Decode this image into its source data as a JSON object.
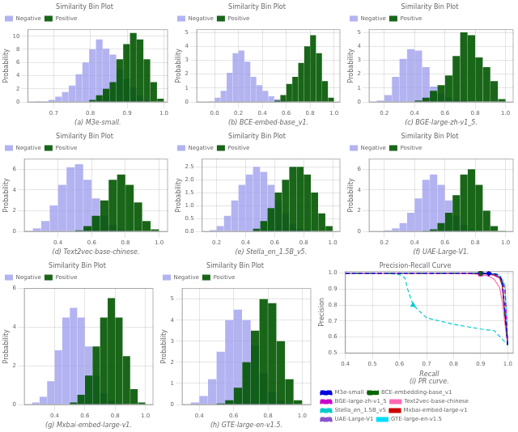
{
  "chart_data": [
    {
      "type": "histogram",
      "title": "Similarity Bin Plot",
      "x_label": "(a) M3e-small.",
      "y_label": "Probability",
      "bins": [
        0.63,
        0.6485,
        0.667,
        0.6855,
        0.704,
        0.7225,
        0.741,
        0.7595,
        0.778,
        0.7965,
        0.815,
        0.8335,
        0.852,
        0.8705,
        0.889,
        0.9075,
        0.926,
        0.9445,
        0.963,
        0.9815,
        1.0
      ],
      "series": [
        {
          "name": "Negative",
          "color": "#9999ee",
          "values": [
            0.0,
            0.02,
            0.1,
            0.3,
            0.8,
            1.5,
            2.5,
            4.2,
            6.0,
            8.0,
            9.5,
            8.1,
            7.2,
            5.0,
            3.5,
            2.2,
            1.0,
            0.3,
            0.05,
            0.0
          ]
        },
        {
          "name": "Positive",
          "color": "#005500",
          "values": [
            0.0,
            0.0,
            0.0,
            0.0,
            0.0,
            0.0,
            0.0,
            0.0,
            0.0,
            0.3,
            1.0,
            2.0,
            3.0,
            6.5,
            8.8,
            10.5,
            9.5,
            6.5,
            3.0,
            0.5
          ]
        }
      ],
      "xlim": [
        0.63,
        1.01
      ],
      "ylim": [
        0,
        11
      ],
      "xticks": [
        0.7,
        0.8,
        0.9,
        {
          "value": 1.0,
          "label": "1.0"
        }
      ],
      "yticks": [
        0,
        2,
        4,
        6,
        8,
        10
      ],
      "grid": true,
      "legend": "upper left"
    },
    {
      "type": "histogram",
      "title": "Similarity Bin Plot",
      "x_label": "(b) BCE-embed-base_v1.",
      "y_label": "Probability",
      "bins": [
        -0.1,
        -0.05,
        0.0,
        0.05,
        0.1,
        0.15,
        0.2,
        0.25,
        0.3,
        0.35,
        0.4,
        0.45,
        0.5,
        0.55,
        0.6,
        0.65,
        0.7,
        0.75,
        0.8,
        0.85,
        0.9,
        0.95,
        1.0
      ],
      "series": [
        {
          "name": "Negative",
          "color": "#9999ee",
          "values": [
            0.0,
            0.05,
            0.3,
            0.8,
            2.1,
            3.5,
            3.7,
            2.9,
            1.8,
            1.2,
            0.8,
            0.4,
            0.2,
            0.1,
            0.05,
            0.0,
            0.0,
            0.0,
            0.0,
            0.0,
            0.0,
            0.0
          ]
        },
        {
          "name": "Positive",
          "color": "#005500",
          "values": [
            0.0,
            0.0,
            0.0,
            0.0,
            0.0,
            0.0,
            0.0,
            0.0,
            0.0,
            0.0,
            0.0,
            0.0,
            0.1,
            0.5,
            1.3,
            1.8,
            2.8,
            4.0,
            4.8,
            3.5,
            1.5,
            0.3
          ]
        }
      ],
      "xlim": [
        -0.15,
        1.05
      ],
      "ylim": [
        0,
        5.2
      ],
      "xticks": [
        {
          "value": 0.0,
          "label": "0.0"
        },
        0.2,
        0.4,
        0.6,
        0.8,
        {
          "value": 1.0,
          "label": "1.0"
        }
      ],
      "yticks": [
        0,
        1,
        2,
        3,
        4,
        5
      ],
      "grid": true,
      "legend": "upper left"
    },
    {
      "type": "histogram",
      "title": "Similarity Bin Plot",
      "x_label": "(c) BGE-large-zh-v1_5.",
      "y_label": "Probability",
      "bins": [
        0.1,
        0.15,
        0.2,
        0.25,
        0.3,
        0.35,
        0.4,
        0.45,
        0.5,
        0.55,
        0.6,
        0.65,
        0.7,
        0.75,
        0.8,
        0.85,
        0.9,
        0.95,
        1.0
      ],
      "series": [
        {
          "name": "Negative",
          "color": "#9999ee",
          "values": [
            0.0,
            0.1,
            0.5,
            1.8,
            3.1,
            3.8,
            3.7,
            2.5,
            1.1,
            0.6,
            0.3,
            0.15,
            0.1,
            0.0,
            0.0,
            0.0,
            0.0,
            0.0
          ]
        },
        {
          "name": "Positive",
          "color": "#005500",
          "values": [
            0.0,
            0.0,
            0.0,
            0.0,
            0.0,
            0.0,
            0.1,
            0.3,
            0.8,
            1.2,
            1.9,
            3.3,
            5.0,
            4.8,
            3.2,
            2.5,
            1.5,
            0.2
          ]
        }
      ],
      "xlim": [
        0.1,
        1.05
      ],
      "ylim": [
        0,
        5.2
      ],
      "xticks": [
        0.2,
        0.4,
        0.6,
        0.8,
        {
          "value": 1.0,
          "label": "1.0"
        }
      ],
      "yticks": [
        0,
        1,
        2,
        3,
        4,
        5
      ],
      "grid": true,
      "legend": "upper left"
    },
    {
      "type": "histogram",
      "title": "Similarity Bin Plot",
      "x_label": "(d) Text2vec-base-chinese.",
      "y_label": "Probability",
      "bins": [
        0.2,
        0.25,
        0.3,
        0.35,
        0.4,
        0.45,
        0.5,
        0.55,
        0.6,
        0.65,
        0.7,
        0.75,
        0.8,
        0.85,
        0.9,
        0.95,
        1.0
      ],
      "series": [
        {
          "name": "Negative",
          "color": "#9999ee",
          "values": [
            0.05,
            0.3,
            1.0,
            2.5,
            4.5,
            6.2,
            6.5,
            5.0,
            3.2,
            1.5,
            0.6,
            0.2,
            0.05,
            0.0,
            0.0,
            0.0
          ]
        },
        {
          "name": "Positive",
          "color": "#005500",
          "values": [
            0.0,
            0.0,
            0.0,
            0.0,
            0.0,
            0.0,
            0.1,
            0.5,
            1.5,
            3.0,
            5.0,
            5.5,
            4.5,
            2.8,
            1.0,
            0.2
          ]
        }
      ],
      "xlim": [
        0.2,
        1.05
      ],
      "ylim": [
        0,
        7
      ],
      "xticks": [
        0.4,
        0.6,
        0.8,
        {
          "value": 1.0,
          "label": "1.0"
        }
      ],
      "yticks": [
        0,
        2,
        4,
        6
      ],
      "grid": true,
      "legend": "upper left"
    },
    {
      "type": "histogram",
      "title": "Similarity Bin Plot",
      "x_label": "(e) Stella_en_1.5B_v5.",
      "y_label": "Probability",
      "bins": [
        0.1,
        0.15,
        0.2,
        0.25,
        0.3,
        0.35,
        0.4,
        0.45,
        0.5,
        0.55,
        0.6,
        0.65,
        0.7,
        0.75,
        0.8,
        0.85,
        0.9,
        0.95,
        1.0
      ],
      "series": [
        {
          "name": "Negative",
          "color": "#9999ee",
          "values": [
            0.0,
            0.05,
            0.2,
            0.6,
            1.2,
            1.8,
            2.2,
            2.5,
            2.3,
            1.8,
            1.2,
            0.7,
            0.3,
            0.1,
            0.05,
            0.0,
            0.0,
            0.0
          ]
        },
        {
          "name": "Positive",
          "color": "#005500",
          "values": [
            0.0,
            0.0,
            0.0,
            0.0,
            0.0,
            0.0,
            0.0,
            0.1,
            0.4,
            0.9,
            1.5,
            2.0,
            2.5,
            2.5,
            2.2,
            1.5,
            0.7,
            0.2
          ]
        }
      ],
      "xlim": [
        0.1,
        1.05
      ],
      "ylim": [
        0,
        2.8
      ],
      "xticks": [
        0.2,
        0.4,
        0.6,
        0.8,
        {
          "value": 1.0,
          "label": "1.0"
        }
      ],
      "yticks": [
        {
          "value": 0.0,
          "label": "0.0"
        },
        0.5,
        {
          "value": 1.0,
          "label": "1.0"
        },
        1.5,
        {
          "value": 2.0,
          "label": "2.0"
        },
        2.5
      ],
      "grid": true,
      "legend": "upper left"
    },
    {
      "type": "histogram",
      "title": "Similarity Bin Plot",
      "x_label": "(f) UAE-Large-V1.",
      "y_label": "Probability",
      "bins": [
        0.1,
        0.15,
        0.2,
        0.25,
        0.3,
        0.35,
        0.4,
        0.45,
        0.5,
        0.55,
        0.6,
        0.65,
        0.7,
        0.75,
        0.8,
        0.85,
        0.9,
        0.95,
        1.0
      ],
      "series": [
        {
          "name": "Negative",
          "color": "#9999ee",
          "values": [
            0.0,
            0.0,
            0.1,
            0.3,
            0.8,
            1.8,
            3.2,
            5.0,
            5.5,
            4.5,
            3.0,
            1.5,
            0.6,
            0.2,
            0.05,
            0.0,
            0.0,
            0.0
          ]
        },
        {
          "name": "Positive",
          "color": "#005500",
          "values": [
            0.0,
            0.0,
            0.0,
            0.0,
            0.0,
            0.0,
            0.0,
            0.05,
            0.2,
            0.8,
            1.8,
            3.5,
            5.5,
            6.0,
            4.5,
            2.0,
            0.5,
            0.05
          ]
        }
      ],
      "xlim": [
        0.1,
        1.05
      ],
      "ylim": [
        0,
        7
      ],
      "xticks": [
        0.2,
        0.4,
        0.6,
        0.8,
        {
          "value": 1.0,
          "label": "1.0"
        }
      ],
      "yticks": [
        0,
        2,
        4,
        6
      ],
      "grid": true,
      "legend": "upper left"
    },
    {
      "type": "histogram",
      "title": "Similarity Bin Plot",
      "x_label": "(g) Mxbai-embed-large-v1.",
      "y_label": "Probability",
      "bins": [
        0.2,
        0.25,
        0.3,
        0.35,
        0.4,
        0.45,
        0.5,
        0.55,
        0.6,
        0.65,
        0.7,
        0.75,
        0.8,
        0.85,
        0.9,
        0.95,
        1.0
      ],
      "series": [
        {
          "name": "Negative",
          "color": "#9999ee",
          "values": [
            0.0,
            0.1,
            0.4,
            1.2,
            2.8,
            4.5,
            5.0,
            4.5,
            3.0,
            1.5,
            0.6,
            0.2,
            0.05,
            0.0,
            0.0,
            0.0
          ]
        },
        {
          "name": "Positive",
          "color": "#005500",
          "values": [
            0.0,
            0.0,
            0.0,
            0.0,
            0.0,
            0.0,
            0.1,
            0.5,
            1.5,
            3.0,
            4.5,
            5.5,
            4.5,
            2.5,
            0.8,
            0.1
          ]
        }
      ],
      "xlim": [
        0.2,
        1.05
      ],
      "ylim": [
        0,
        6
      ],
      "xticks": [
        0.4,
        0.6,
        0.8,
        {
          "value": 1.0,
          "label": "1.0"
        }
      ],
      "yticks": [
        0,
        2,
        4,
        6
      ],
      "grid": true,
      "legend": "upper left"
    },
    {
      "type": "histogram",
      "title": "Similarity Bin Plot",
      "x_label": "(h) GTE-large-en-v1.5.",
      "y_label": "Probability",
      "bins": [
        0.3,
        0.35,
        0.4,
        0.45,
        0.5,
        0.55,
        0.6,
        0.65,
        0.7,
        0.75,
        0.8,
        0.85,
        0.9,
        0.95,
        1.0
      ],
      "series": [
        {
          "name": "Negative",
          "color": "#9999ee",
          "values": [
            0.0,
            0.1,
            0.4,
            1.2,
            2.5,
            4.0,
            4.5,
            4.0,
            2.8,
            1.5,
            0.6,
            0.2,
            0.05,
            0.0
          ]
        },
        {
          "name": "Positive",
          "color": "#005500",
          "values": [
            0.0,
            0.0,
            0.0,
            0.0,
            0.05,
            0.2,
            0.8,
            2.0,
            3.5,
            5.0,
            4.8,
            3.0,
            1.2,
            0.2
          ]
        }
      ],
      "xlim": [
        0.3,
        1.05
      ],
      "ylim": [
        0,
        5.5
      ],
      "xticks": [
        0.4,
        0.6,
        0.8,
        {
          "value": 1.0,
          "label": "1.0"
        }
      ],
      "yticks": [
        0,
        1,
        2,
        3,
        4,
        5
      ],
      "grid": true,
      "legend": "upper left"
    },
    {
      "type": "line",
      "title": "Precision-Recall Curve",
      "x_label": "Recall\n(i) PR curve.",
      "y_label": "Precision",
      "series": [
        {
          "name": "M3e-small",
          "color": "#0000dd",
          "line_style": "dashed",
          "marker": "diamond",
          "x": [
            0.4,
            0.5,
            0.6,
            0.7,
            0.8,
            0.85,
            0.9,
            0.93,
            0.95,
            0.96,
            0.97,
            0.975,
            0.98,
            1.0
          ],
          "values": [
            1.0,
            1.0,
            1.0,
            1.0,
            1.0,
            1.0,
            1.0,
            0.998,
            0.996,
            0.993,
            0.985,
            0.97,
            0.94,
            0.55
          ]
        },
        {
          "name": "BCE-embedding-base_v1",
          "color": "#006600",
          "line_style": "dashdot",
          "marker": "diamond",
          "x": [
            0.4,
            0.5,
            0.6,
            0.7,
            0.8,
            0.85,
            0.9,
            0.93,
            0.95,
            0.96,
            0.97,
            0.98,
            1.0
          ],
          "values": [
            1.0,
            1.0,
            1.0,
            1.0,
            1.0,
            1.0,
            0.999,
            0.997,
            0.994,
            0.989,
            0.975,
            0.94,
            0.55
          ]
        },
        {
          "name": "BGE-large-zh-v1_5",
          "color": "#cc00cc",
          "line_style": "dashed",
          "marker": "square",
          "x": [
            0.4,
            0.5,
            0.6,
            0.7,
            0.8,
            0.85,
            0.9,
            0.93,
            0.95,
            0.97,
            0.98,
            0.99,
            1.0
          ],
          "values": [
            1.0,
            1.0,
            1.0,
            1.0,
            1.0,
            0.999,
            0.997,
            0.993,
            0.987,
            0.97,
            0.95,
            0.9,
            0.55
          ]
        },
        {
          "name": "Text2vec-base-chinese",
          "color": "#ff69b4",
          "line_style": "solid",
          "marker": "square",
          "x": [
            0.4,
            0.5,
            0.6,
            0.7,
            0.8,
            0.85,
            0.9,
            0.93,
            0.95,
            0.97,
            0.98,
            0.99,
            1.0
          ],
          "values": [
            1.0,
            1.0,
            1.0,
            1.0,
            0.999,
            0.997,
            0.992,
            0.981,
            0.96,
            0.91,
            0.82,
            0.68,
            0.55
          ]
        },
        {
          "name": "Stella_en_1.5B_v5",
          "color": "#00cccc",
          "line_style": "dashed",
          "marker": "triangle",
          "x": [
            0.4,
            0.5,
            0.55,
            0.6,
            0.62,
            0.63,
            0.65,
            0.7,
            0.8,
            0.9,
            0.95,
            1.0
          ],
          "values": [
            1.0,
            1.0,
            1.0,
            0.99,
            0.97,
            0.9,
            0.8,
            0.72,
            0.68,
            0.65,
            0.64,
            0.55
          ]
        },
        {
          "name": "Mxbai-embed-large-v1",
          "color": "#cc0000",
          "line_style": "solid",
          "marker": "circle",
          "x": [
            0.4,
            0.5,
            0.6,
            0.7,
            0.8,
            0.85,
            0.9,
            0.93,
            0.95,
            0.97,
            0.98,
            1.0
          ],
          "values": [
            1.0,
            1.0,
            1.0,
            1.0,
            1.0,
            0.999,
            0.997,
            0.993,
            0.987,
            0.97,
            0.92,
            0.55
          ]
        },
        {
          "name": "UAE-Large-V1",
          "color": "#8855cc",
          "line_style": "dashed",
          "marker": "triangle",
          "x": [
            0.4,
            0.5,
            0.6,
            0.7,
            0.8,
            0.85,
            0.9,
            0.93,
            0.95,
            0.97,
            0.98,
            0.99,
            1.0
          ],
          "values": [
            1.0,
            1.0,
            1.0,
            1.0,
            1.0,
            0.999,
            0.998,
            0.995,
            0.99,
            0.975,
            0.95,
            0.88,
            0.55
          ]
        },
        {
          "name": "GTE-large-en-v1.5",
          "color": "#00ddff",
          "line_style": "solid",
          "marker": "circle",
          "x": [
            0.4,
            0.5,
            0.6,
            0.7,
            0.8,
            0.85,
            0.9,
            0.93,
            0.95,
            0.97,
            0.98,
            0.99,
            1.0
          ],
          "values": [
            1.0,
            1.0,
            1.0,
            1.0,
            1.0,
            1.0,
            0.999,
            0.997,
            0.993,
            0.98,
            0.96,
            0.92,
            0.55
          ]
        }
      ],
      "xlim": [
        0.4,
        1.02
      ],
      "ylim": [
        0.5,
        1.01
      ],
      "xticks": [
        0.4,
        0.5,
        0.6,
        0.7,
        0.8,
        0.9,
        {
          "value": 1.0,
          "label": "1.0"
        }
      ],
      "yticks": [
        0.5,
        0.6,
        0.7,
        0.8,
        0.9,
        {
          "value": 1.0,
          "label": "1.0"
        }
      ],
      "grid": true,
      "legend": "lower left"
    }
  ]
}
